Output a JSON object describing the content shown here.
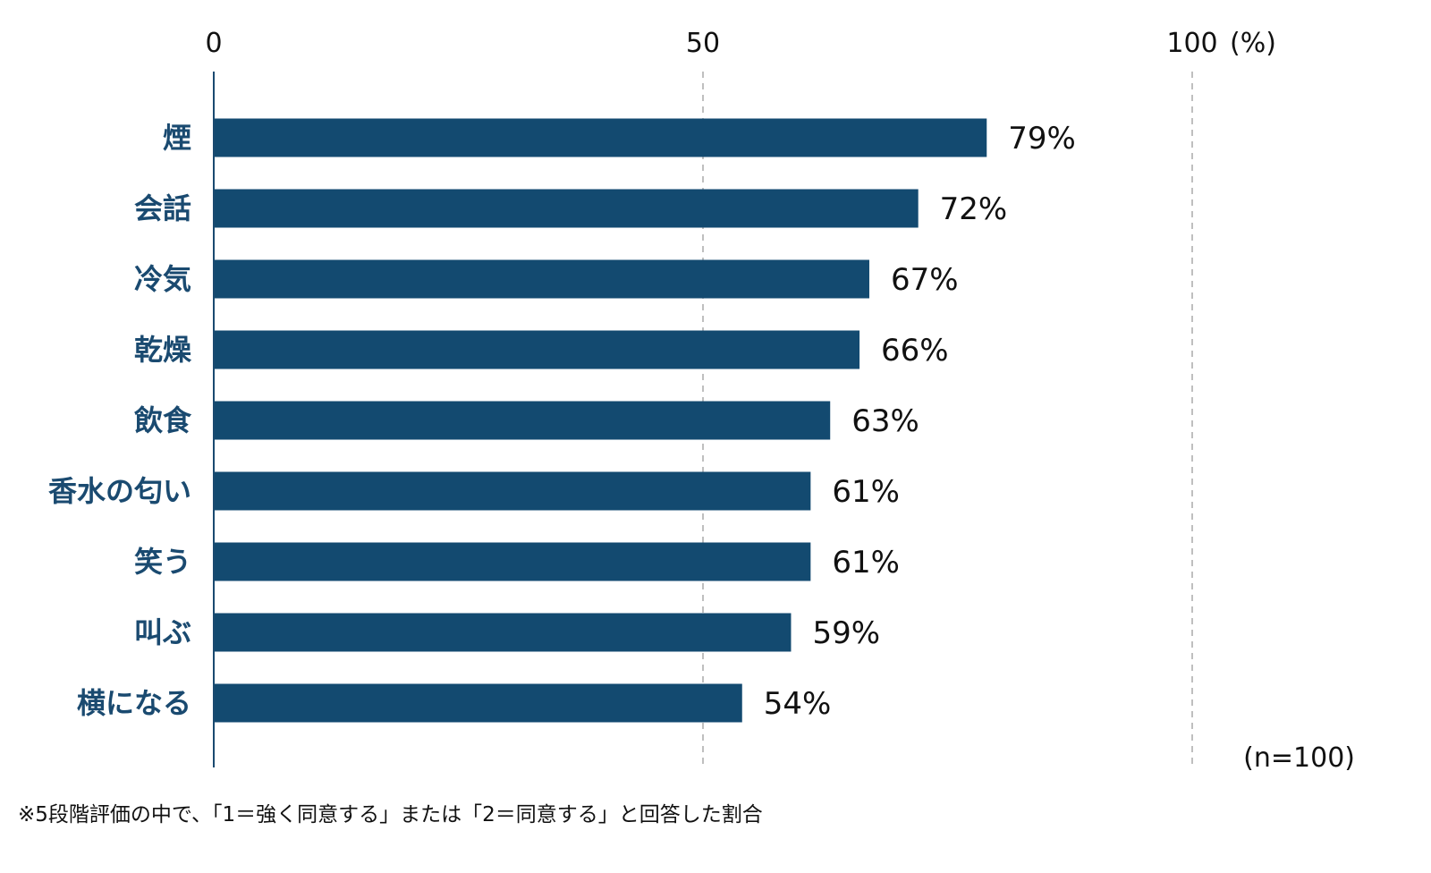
{
  "chart_data": {
    "type": "bar",
    "orientation": "horizontal",
    "categories": [
      "煙",
      "会話",
      "冷気",
      "乾燥",
      "飲食",
      "香水の匂い",
      "笑う",
      "叫ぶ",
      "横になる"
    ],
    "values": [
      79,
      72,
      67,
      66,
      63,
      61,
      61,
      59,
      54
    ],
    "value_labels": [
      "79%",
      "72%",
      "67%",
      "66%",
      "63%",
      "61%",
      "61%",
      "59%",
      "54%"
    ],
    "xlim": [
      0,
      100
    ],
    "ticks": [
      0,
      50,
      100
    ],
    "tick_labels": [
      "0",
      "50",
      "100"
    ],
    "unit_label": "(%)",
    "grid": "dashed vertical at 50 and 100",
    "sample_note": "(n=100)",
    "footnote": "※5段階評価の中で、「1＝強く同意する」または「2＝同意する」と回答した割合",
    "colors": {
      "bar": "#134a70",
      "category_label": "#1a4a70",
      "grid": "#aaaaaa"
    }
  }
}
